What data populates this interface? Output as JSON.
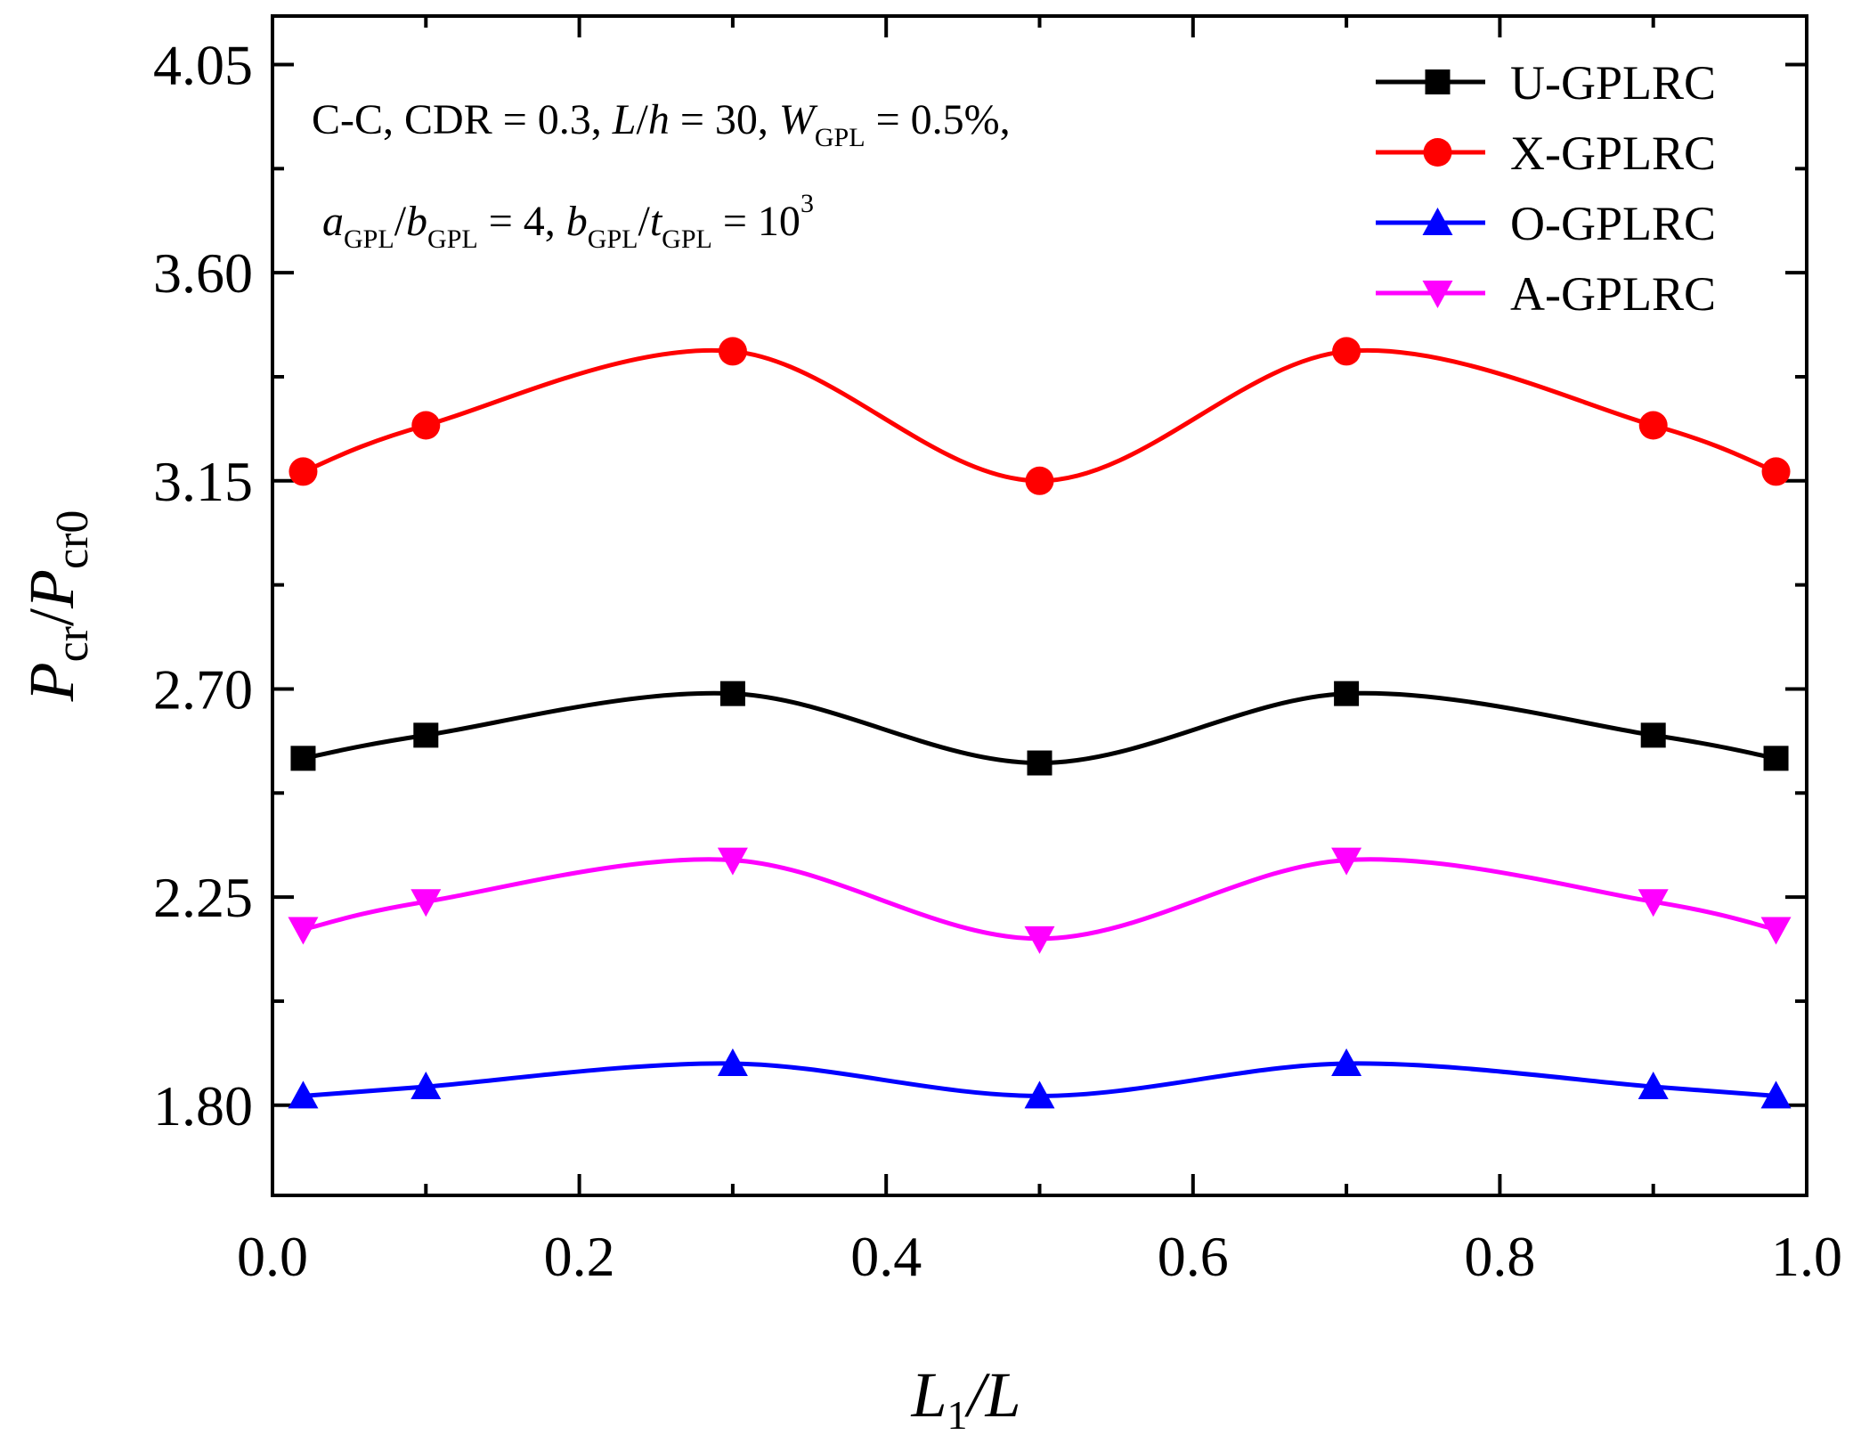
{
  "chart_data": {
    "type": "line",
    "xlabel": "L1/L",
    "ylabel": "Pcr/Pcr0",
    "xlim": [
      0.0,
      1.0
    ],
    "ylim": [
      1.605,
      4.155
    ],
    "x_ticks": [
      "0.0",
      "0.2",
      "0.4",
      "0.6",
      "0.8",
      "1.0"
    ],
    "x_tick_values": [
      0.0,
      0.2,
      0.4,
      0.6,
      0.8,
      1.0
    ],
    "y_ticks": [
      "1.80",
      "2.25",
      "2.70",
      "3.15",
      "3.60",
      "4.05"
    ],
    "y_tick_values": [
      1.8,
      2.25,
      2.7,
      3.15,
      3.6,
      4.05
    ],
    "x": [
      0.02,
      0.1,
      0.3,
      0.5,
      0.7,
      0.9,
      0.98
    ],
    "series": [
      {
        "name": "U-GPLRC",
        "color": "#000000",
        "marker": "square",
        "values": [
          2.55,
          2.6,
          2.69,
          2.54,
          2.69,
          2.6,
          2.55
        ]
      },
      {
        "name": "X-GPLRC",
        "color": "#ff0000",
        "marker": "circle",
        "values": [
          3.17,
          3.27,
          3.43,
          3.15,
          3.43,
          3.27,
          3.17
        ]
      },
      {
        "name": "O-GPLRC",
        "color": "#0000ff",
        "marker": "triangle-up",
        "values": [
          1.82,
          1.84,
          1.89,
          1.82,
          1.89,
          1.84,
          1.82
        ]
      },
      {
        "name": "A-GPLRC",
        "color": "#ff00ff",
        "marker": "triangle-down",
        "values": [
          2.18,
          2.24,
          2.33,
          2.16,
          2.33,
          2.24,
          2.18
        ]
      }
    ],
    "legend_position": "top-right",
    "annotation": {
      "line1": {
        "t1": "C-C, CDR = 0.3, ",
        "L": "L",
        "slash": "/",
        "h": "h",
        "t2": " = 30, ",
        "W": "W",
        "W_sub": "GPL",
        "t3": " = 0.5%,"
      },
      "line2": {
        "a": "a",
        "a_sub": "GPL",
        "slash1": "/",
        "b": "b",
        "b_sub": "GPL",
        "t1": " = 4,  ",
        "b2": "b",
        "b2_sub": "GPL",
        "slash2": "/",
        "t": "t",
        "t_sub": "GPL",
        "t2": " = 10",
        "sup": "3"
      }
    },
    "axis_title_parts": {
      "x": {
        "L": "L",
        "sub": "1",
        "rest": "/L"
      },
      "y": {
        "P1": "P",
        "sub1": "cr",
        "slash": "/",
        "P2": "P",
        "sub2": "cr0"
      }
    }
  }
}
